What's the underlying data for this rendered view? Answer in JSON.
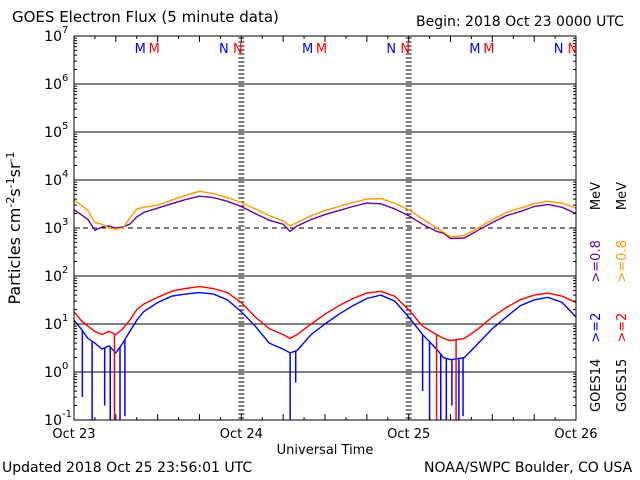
{
  "header": {
    "title": "GOES Electron Flux (5 minute data)",
    "begin": "Begin: 2018 Oct 23 0000 UTC"
  },
  "footer": {
    "updated": "Updated 2018 Oct 25 23:56:01 UTC",
    "credit": "NOAA/SWPC Boulder, CO USA"
  },
  "chart_data": {
    "type": "line",
    "title": "GOES Electron Flux (5 minute data)",
    "xlabel": "Universal Time",
    "ylabel": "Particles cm-2s-1sr-1",
    "yscale": "log",
    "ylim": [
      0.1,
      10000000
    ],
    "xlim": [
      0,
      72
    ],
    "x_unit": "hours since 2018 Oct 23 0000 UTC",
    "x_ticks": [
      {
        "x": 0,
        "label": "Oct 23"
      },
      {
        "x": 24,
        "label": "Oct 24"
      },
      {
        "x": 48,
        "label": "Oct 25"
      },
      {
        "x": 72,
        "label": "Oct 26"
      }
    ],
    "y_ticks": [
      {
        "exp": 7,
        "label": "7"
      },
      {
        "exp": 6,
        "label": "6"
      },
      {
        "exp": 5,
        "label": "5"
      },
      {
        "exp": 4,
        "label": "4"
      },
      {
        "exp": 3,
        "label": "3"
      },
      {
        "exp": 2,
        "label": "2"
      },
      {
        "exp": 1,
        "label": "1"
      },
      {
        "exp": 0,
        "label": "0"
      },
      {
        "exp": -1,
        "label": "-1"
      }
    ],
    "gridlines_log": [
      6,
      5,
      4,
      2,
      1,
      0
    ],
    "dashed_line": 3,
    "grid": true,
    "midnight_markers": [
      {
        "x": 9.5,
        "label": "M",
        "color": "#0000ff"
      },
      {
        "x": 11.5,
        "label": "M",
        "color": "#ff0000"
      },
      {
        "x": 21.5,
        "label": "N",
        "color": "#0000ff"
      },
      {
        "x": 23.5,
        "label": "N",
        "color": "#ff0000"
      },
      {
        "x": 33.5,
        "label": "M",
        "color": "#0000ff"
      },
      {
        "x": 35.5,
        "label": "M",
        "color": "#ff0000"
      },
      {
        "x": 45.5,
        "label": "N",
        "color": "#0000ff"
      },
      {
        "x": 47.5,
        "label": "N",
        "color": "#ff0000"
      },
      {
        "x": 57.5,
        "label": "M",
        "color": "#0000ff"
      },
      {
        "x": 59.5,
        "label": "M",
        "color": "#ff0000"
      },
      {
        "x": 69.5,
        "label": "N",
        "color": "#0000ff"
      },
      {
        "x": 71.5,
        "label": "N",
        "color": "#ff0000"
      }
    ],
    "legend": {
      "placement": "right",
      "columns": [
        {
          "sat": "GOES14",
          "entries": [
            {
              "text": ">=2",
              "color": "#0000ff"
            },
            {
              "text": ">=0.8",
              "color": "#660099"
            },
            {
              "text": "MeV",
              "color": "#000000"
            }
          ]
        },
        {
          "sat": "GOES15",
          "entries": [
            {
              "text": ">=2",
              "color": "#ff0000"
            },
            {
              "text": ">=0.8",
              "color": "#ff9900"
            },
            {
              "text": "MeV",
              "color": "#000000"
            }
          ]
        }
      ]
    },
    "series": [
      {
        "name": "GOES14 >=0.8 MeV",
        "color": "#660099",
        "x": [
          0,
          1,
          2,
          3,
          4,
          5,
          6,
          7,
          8,
          9,
          10,
          12,
          14,
          16,
          18,
          20,
          22,
          24,
          26,
          28,
          30,
          31,
          32,
          34,
          36,
          38,
          40,
          42,
          44,
          46,
          48,
          50,
          52,
          53,
          54,
          56,
          58,
          60,
          62,
          64,
          66,
          68,
          70,
          72
        ],
        "y": [
          2400,
          1900,
          1500,
          900,
          1050,
          1100,
          1000,
          1050,
          1200,
          1700,
          2100,
          2600,
          3200,
          3900,
          4600,
          4300,
          3600,
          2800,
          2000,
          1450,
          1200,
          850,
          1100,
          1500,
          1900,
          2300,
          2800,
          3300,
          3200,
          2500,
          1800,
          1200,
          850,
          780,
          600,
          620,
          900,
          1300,
          1800,
          2200,
          2800,
          3100,
          2700,
          2000
        ]
      },
      {
        "name": "GOES15 >=0.8 MeV",
        "color": "#ff9900",
        "x": [
          0,
          1,
          2,
          3,
          4,
          5,
          6,
          7,
          8,
          9,
          10,
          12,
          14,
          16,
          18,
          20,
          22,
          24,
          26,
          28,
          30,
          31,
          32,
          34,
          36,
          38,
          40,
          42,
          44,
          46,
          48,
          50,
          52,
          53,
          54,
          56,
          58,
          60,
          62,
          64,
          66,
          68,
          70,
          72
        ],
        "y": [
          3800,
          3000,
          2300,
          1300,
          1200,
          1000,
          950,
          1000,
          1600,
          2500,
          2700,
          3000,
          3800,
          4800,
          5800,
          5200,
          4300,
          3400,
          2500,
          1800,
          1400,
          1100,
          1300,
          1800,
          2300,
          2800,
          3400,
          4000,
          4100,
          3300,
          2400,
          1550,
          1000,
          820,
          650,
          700,
          1000,
          1500,
          2100,
          2600,
          3200,
          3600,
          3300,
          2600
        ]
      },
      {
        "name": "GOES14 >=2 MeV",
        "color": "#0000ff",
        "x": [
          0,
          1,
          2,
          3,
          4,
          5,
          6,
          7,
          8,
          9,
          10,
          12,
          14,
          16,
          18,
          20,
          22,
          24,
          26,
          28,
          30,
          31,
          32,
          34,
          36,
          38,
          40,
          42,
          44,
          46,
          48,
          50,
          52,
          53,
          54,
          56,
          58,
          60,
          62,
          64,
          66,
          68,
          70,
          72
        ],
        "y": [
          12,
          8,
          5,
          4,
          3,
          3.5,
          2.5,
          4,
          7,
          12,
          18,
          28,
          38,
          42,
          45,
          42,
          32,
          18,
          9,
          4,
          3,
          2.5,
          2.8,
          6,
          10,
          16,
          24,
          34,
          40,
          30,
          14,
          6,
          3,
          2,
          1.8,
          2,
          4,
          8,
          14,
          24,
          32,
          36,
          28,
          14
        ]
      },
      {
        "name": "GOES15 >=2 MeV",
        "color": "#ff0000",
        "x": [
          0,
          1,
          2,
          3,
          4,
          5,
          6,
          7,
          8,
          9,
          10,
          12,
          14,
          16,
          18,
          20,
          22,
          24,
          26,
          28,
          30,
          31,
          32,
          34,
          36,
          38,
          40,
          42,
          44,
          46,
          48,
          50,
          52,
          53,
          54,
          56,
          58,
          60,
          62,
          64,
          66,
          68,
          70,
          72
        ],
        "y": [
          18,
          12,
          9,
          7,
          6,
          7,
          6,
          8,
          12,
          20,
          26,
          36,
          48,
          55,
          60,
          55,
          45,
          28,
          14,
          8,
          6,
          5,
          6,
          10,
          16,
          24,
          34,
          44,
          48,
          38,
          20,
          9,
          6,
          5,
          4.5,
          5,
          8,
          14,
          22,
          32,
          40,
          44,
          38,
          28
        ]
      }
    ],
    "dropouts": [
      {
        "series": "GOES14 >=2 MeV",
        "x": [
          1.2,
          2.6,
          4.4,
          5.2,
          6.6,
          7.3,
          31.0,
          31.8,
          50.0,
          51.0,
          52.6,
          53.4,
          54.2,
          55.2,
          55.8
        ],
        "y": [
          0.3,
          0.1,
          0.2,
          0.1,
          0.1,
          0.12,
          0.1,
          0.6,
          0.4,
          0.1,
          0.1,
          0.1,
          0.2,
          0.1,
          0.12
        ]
      },
      {
        "series": "GOES15 >=2 MeV",
        "x": [
          5.8,
          52.0,
          54.8
        ],
        "y": [
          0.1,
          0.1,
          0.1
        ]
      }
    ]
  }
}
